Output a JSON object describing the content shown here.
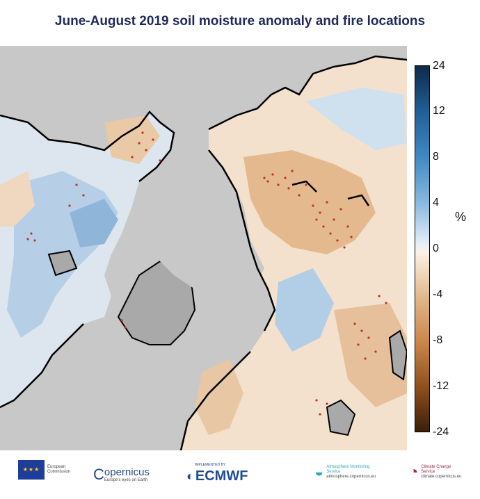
{
  "title": "June-August 2019 soil moisture anomaly and fire locations",
  "colorbar": {
    "ticks": [
      "24",
      "12",
      "8",
      "4",
      "0",
      "-4",
      "-8",
      "-12",
      "-24"
    ],
    "unit": "%"
  },
  "logos": {
    "eu": {
      "name": "european-commission-logo",
      "text": "European Commission"
    },
    "copernicus": {
      "name": "copernicus-logo",
      "text": "opernicus",
      "tagline": "Europe's eyes on Earth"
    },
    "ecmwf": {
      "name": "ecmwf-logo",
      "text": "ECMWF",
      "tagline": "IMPLEMENTED BY"
    },
    "cams": {
      "name": "atmosphere-monitoring-logo",
      "text": "Atmosphere Monitoring Service",
      "url": "atmosphere.copernicus.eu"
    },
    "c3s": {
      "name": "climate-change-logo",
      "text": "Climate Change Service",
      "url": "climate.copernicus.eu"
    }
  },
  "colors": {
    "ocean": "#c8c8c8",
    "fire": "#c0341a",
    "title": "#1f2a5a"
  }
}
